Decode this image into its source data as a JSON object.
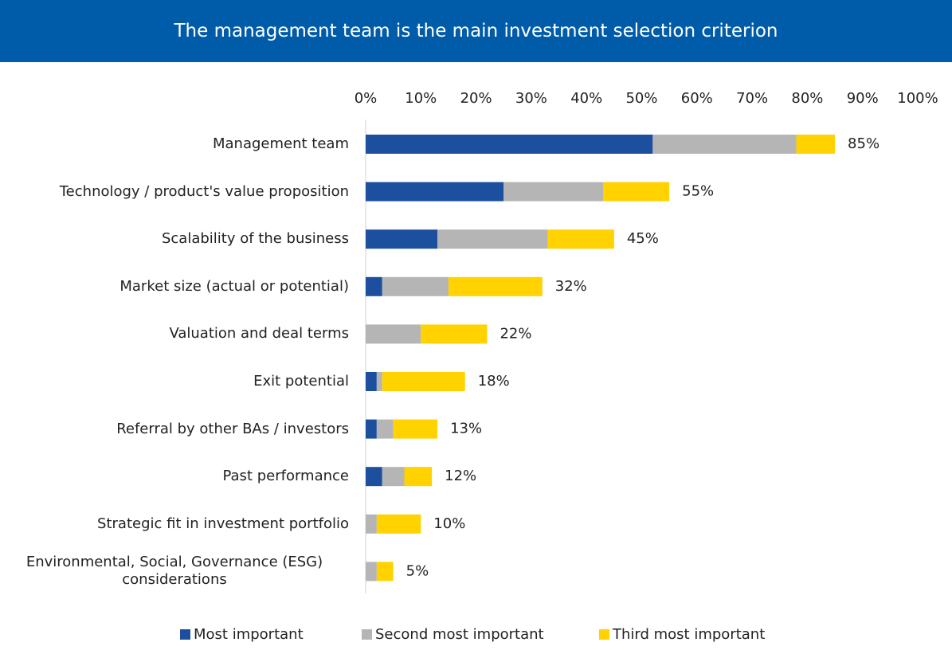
{
  "chart_data": {
    "type": "stacked-bar-horizontal",
    "title": "The management team is the main investment selection criterion",
    "categories": [
      "Management team",
      "Technology / product's value proposition",
      "Scalability of the business",
      "Market size (actual or potential)",
      "Valuation and deal terms",
      "Exit potential",
      "Referral by other BAs / investors",
      "Past performance",
      "Strategic fit in investment portfolio",
      "Environmental, Social, Governance (ESG) considerations"
    ],
    "series": [
      {
        "name": "Most important",
        "color": "#1c4f9e",
        "values": [
          52,
          25,
          13,
          3,
          0,
          2,
          2,
          3,
          0,
          0
        ]
      },
      {
        "name": "Second most important",
        "color": "#b5b5b5",
        "values": [
          26,
          18,
          20,
          12,
          10,
          1,
          3,
          4,
          2,
          2
        ]
      },
      {
        "name": "Third most important",
        "color": "#ffd200",
        "values": [
          7,
          12,
          12,
          17,
          12,
          15,
          8,
          5,
          8,
          3
        ]
      }
    ],
    "totals": [
      85,
      55,
      45,
      32,
      22,
      18,
      13,
      12,
      10,
      5
    ],
    "total_labels": [
      "85%",
      "55%",
      "45%",
      "32%",
      "22%",
      "18%",
      "13%",
      "12%",
      "10%",
      "5%"
    ],
    "xlim": [
      0,
      100
    ],
    "xticks": [
      {
        "value": 0,
        "label": "0%"
      },
      {
        "value": 10,
        "label": "10%"
      },
      {
        "value": 20,
        "label": "20%"
      },
      {
        "value": 30,
        "label": "30%"
      },
      {
        "value": 40,
        "label": "40%"
      },
      {
        "value": 50,
        "label": "50%"
      },
      {
        "value": 60,
        "label": "60%"
      },
      {
        "value": 70,
        "label": "70%"
      },
      {
        "value": 80,
        "label": "80%"
      },
      {
        "value": 90,
        "label": "90%"
      },
      {
        "value": 100,
        "label": "100%"
      }
    ],
    "legend": "bottom",
    "title_bar_color": "#005ba9"
  }
}
